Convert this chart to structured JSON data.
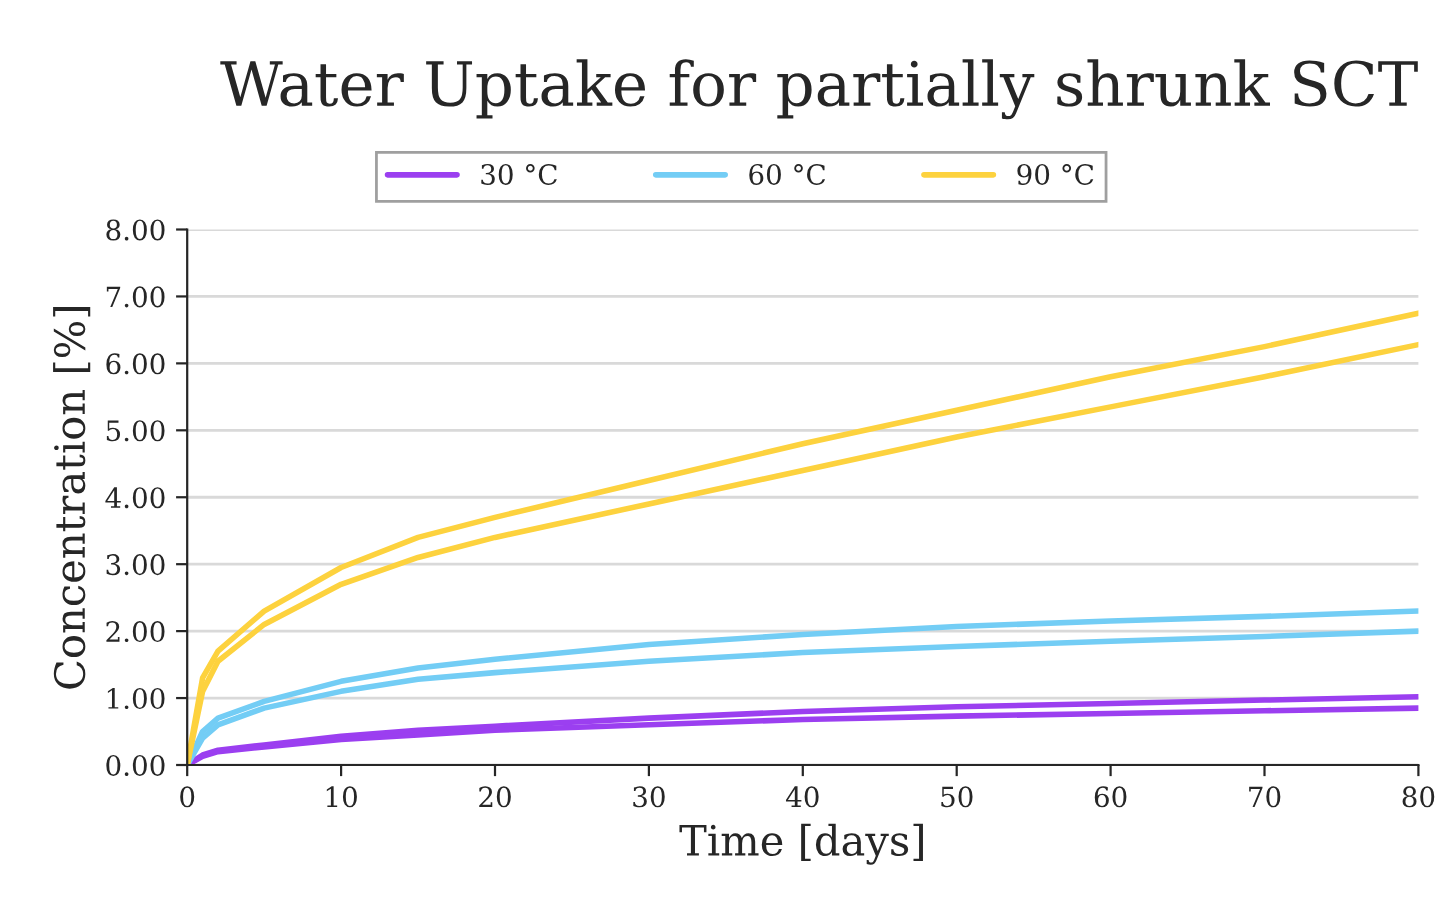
{
  "chart_data": {
    "type": "line",
    "title": "Water Uptake for partially shrunk SCT",
    "xlabel": "Time [days]",
    "ylabel": "Concentration [%]",
    "x": [
      0,
      1,
      2,
      5,
      10,
      15,
      20,
      30,
      40,
      50,
      60,
      70,
      80
    ],
    "series": [
      {
        "name": "30 °C",
        "color": "#9b3ff0",
        "values": [
          0,
          0.15,
          0.22,
          0.3,
          0.43,
          0.52,
          0.58,
          0.7,
          0.8,
          0.87,
          0.92,
          0.97,
          1.02
        ]
      },
      {
        "color": "#9b3ff0",
        "values": [
          0,
          0.13,
          0.2,
          0.27,
          0.38,
          0.45,
          0.52,
          0.6,
          0.68,
          0.73,
          0.77,
          0.81,
          0.85
        ]
      },
      {
        "name": "60 °C",
        "color": "#73cdf5",
        "values": [
          0,
          0.5,
          0.7,
          0.95,
          1.25,
          1.45,
          1.58,
          1.8,
          1.95,
          2.07,
          2.15,
          2.22,
          2.3
        ]
      },
      {
        "color": "#73cdf5",
        "values": [
          0,
          0.4,
          0.6,
          0.85,
          1.1,
          1.28,
          1.38,
          1.55,
          1.68,
          1.77,
          1.85,
          1.92,
          2.0
        ]
      },
      {
        "name": "90 °C",
        "color": "#fdd23e",
        "values": [
          0,
          1.3,
          1.7,
          2.3,
          2.95,
          3.4,
          3.7,
          4.25,
          4.8,
          5.3,
          5.8,
          6.25,
          6.75
        ]
      },
      {
        "color": "#fdd23e",
        "values": [
          0,
          1.1,
          1.55,
          2.1,
          2.7,
          3.1,
          3.4,
          3.9,
          4.4,
          4.9,
          5.35,
          5.8,
          6.28
        ]
      }
    ],
    "xlim": [
      0,
      80
    ],
    "xticks": [
      0,
      10,
      20,
      30,
      40,
      50,
      60,
      70,
      80
    ],
    "ylim": [
      0,
      8
    ],
    "yticks": [
      {
        "value": 0,
        "label": "0.00"
      },
      {
        "value": 1,
        "label": "1.00"
      },
      {
        "value": 2,
        "label": "2.00"
      },
      {
        "value": 3,
        "label": "3.00"
      },
      {
        "value": 4,
        "label": "4.00"
      },
      {
        "value": 5,
        "label": "5.00"
      },
      {
        "value": 6,
        "label": "6.00"
      },
      {
        "value": 7,
        "label": "7.00"
      },
      {
        "value": 8,
        "label": "8.00"
      }
    ],
    "grid": "y",
    "legend": "top",
    "marker": "none",
    "line_style": "solid"
  }
}
